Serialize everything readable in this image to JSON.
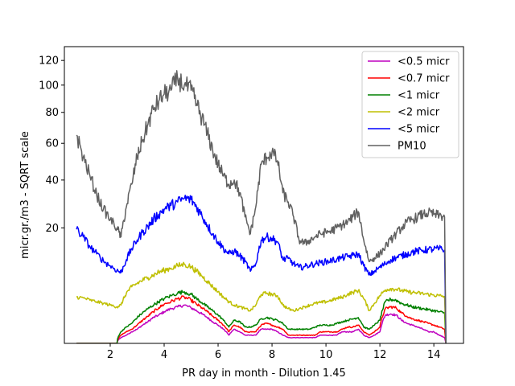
{
  "chart_data": {
    "type": "line",
    "xlabel": "PR day in month - Dilution 1.45",
    "ylabel": "micr.gr./m3 - SQRT scale",
    "y_scale": "sqrt",
    "xlim": [
      0.3,
      15.1
    ],
    "ylim": [
      0,
      132
    ],
    "x_ticks": [
      2,
      4,
      6,
      8,
      10,
      12,
      14
    ],
    "y_ticks": [
      20,
      40,
      60,
      80,
      100,
      120
    ],
    "legend_position": "upper-right",
    "grid": false,
    "x": [
      0.75,
      1.0,
      1.25,
      1.5,
      1.75,
      2.0,
      2.25,
      2.4,
      2.6,
      2.8,
      3.0,
      3.2,
      3.4,
      3.6,
      3.8,
      4.0,
      4.25,
      4.5,
      4.75,
      5.0,
      5.2,
      5.4,
      5.6,
      5.8,
      6.0,
      6.2,
      6.4,
      6.6,
      6.8,
      7.0,
      7.2,
      7.4,
      7.6,
      7.8,
      8.0,
      8.2,
      8.4,
      8.6,
      8.8,
      9.0,
      9.2,
      9.4,
      9.6,
      9.8,
      10.0,
      10.2,
      10.4,
      10.6,
      10.8,
      11.0,
      11.2,
      11.4,
      11.6,
      11.8,
      12.0,
      12.2,
      12.4,
      12.6,
      12.8,
      13.0,
      13.2,
      13.4,
      13.6,
      13.8,
      14.0,
      14.2,
      14.4,
      14.45
    ],
    "series": [
      {
        "name": "<0.5 micr",
        "color": "#bf00bf",
        "values": [
          0.0,
          0.0,
          0.0,
          0.0,
          0.0,
          0.0,
          0.0,
          0.05,
          0.1,
          0.2,
          0.3,
          0.5,
          0.7,
          1.0,
          1.2,
          1.5,
          1.8,
          2.0,
          2.2,
          1.9,
          1.6,
          1.3,
          1.0,
          0.7,
          0.5,
          0.3,
          0.1,
          0.3,
          0.2,
          0.1,
          0.1,
          0.1,
          0.3,
          0.3,
          0.3,
          0.2,
          0.1,
          0.05,
          0.05,
          0.05,
          0.05,
          0.05,
          0.05,
          0.1,
          0.1,
          0.1,
          0.1,
          0.2,
          0.2,
          0.2,
          0.3,
          0.1,
          0.05,
          0.1,
          0.2,
          1.2,
          1.3,
          1.2,
          0.8,
          0.6,
          0.5,
          0.4,
          0.3,
          0.2,
          0.2,
          0.1,
          0.05,
          0.0
        ]
      },
      {
        "name": "<0.7 micr",
        "color": "#ff0000",
        "values": [
          0.0,
          0.0,
          0.0,
          0.0,
          0.0,
          0.0,
          0.0,
          0.1,
          0.2,
          0.3,
          0.5,
          0.8,
          1.1,
          1.5,
          1.9,
          2.3,
          2.6,
          3.0,
          3.2,
          2.8,
          2.3,
          1.9,
          1.5,
          1.1,
          0.8,
          0.5,
          0.2,
          0.5,
          0.4,
          0.2,
          0.2,
          0.2,
          0.5,
          0.6,
          0.5,
          0.4,
          0.3,
          0.1,
          0.1,
          0.1,
          0.1,
          0.1,
          0.1,
          0.2,
          0.2,
          0.2,
          0.2,
          0.3,
          0.4,
          0.4,
          0.5,
          0.2,
          0.1,
          0.2,
          0.4,
          1.8,
          2.0,
          1.9,
          1.4,
          1.1,
          0.9,
          0.8,
          0.7,
          0.6,
          0.5,
          0.4,
          0.3,
          0.0
        ]
      },
      {
        "name": "<1 micr",
        "color": "#008000",
        "values": [
          0.0,
          0.0,
          0.0,
          0.0,
          0.0,
          0.0,
          0.0,
          0.2,
          0.4,
          0.6,
          1.0,
          1.4,
          1.8,
          2.2,
          2.6,
          3.0,
          3.4,
          3.8,
          4.0,
          3.6,
          3.0,
          2.5,
          2.0,
          1.6,
          1.2,
          0.8,
          0.4,
          0.8,
          0.7,
          0.4,
          0.4,
          0.5,
          0.9,
          1.0,
          0.9,
          0.8,
          0.6,
          0.3,
          0.3,
          0.3,
          0.3,
          0.3,
          0.4,
          0.5,
          0.5,
          0.5,
          0.6,
          0.7,
          0.8,
          0.9,
          1.0,
          0.4,
          0.3,
          0.5,
          0.8,
          2.6,
          2.9,
          2.8,
          2.4,
          2.2,
          2.0,
          1.9,
          1.8,
          1.7,
          1.6,
          1.5,
          1.4,
          0.0
        ]
      },
      {
        "name": "<2 micr",
        "color": "#bfbf00",
        "values": [
          3.2,
          3.1,
          2.8,
          2.6,
          2.4,
          2.2,
          2.0,
          2.2,
          3.8,
          4.8,
          5.4,
          6.0,
          6.5,
          7.0,
          7.6,
          8.0,
          8.5,
          9.0,
          9.4,
          8.8,
          7.8,
          6.8,
          5.8,
          4.8,
          4.0,
          3.2,
          2.6,
          2.2,
          2.0,
          1.8,
          1.6,
          2.2,
          3.6,
          3.8,
          3.6,
          3.4,
          2.2,
          1.8,
          1.6,
          1.8,
          2.0,
          2.2,
          2.4,
          2.5,
          2.6,
          2.8,
          3.0,
          3.2,
          3.6,
          3.9,
          4.2,
          3.0,
          1.6,
          2.4,
          3.4,
          4.3,
          4.5,
          4.4,
          4.2,
          4.0,
          3.9,
          3.8,
          3.7,
          3.6,
          3.5,
          3.4,
          3.3,
          0.0
        ]
      },
      {
        "name": "<5 micr",
        "color": "#0000ff",
        "values": [
          19.5,
          17.0,
          14.0,
          12.0,
          10.2,
          9.0,
          8.0,
          7.5,
          10.5,
          13.5,
          16.0,
          18.5,
          20.5,
          23.0,
          25.0,
          27.0,
          28.5,
          30.0,
          31.5,
          31.0,
          28.0,
          24.5,
          21.0,
          18.0,
          15.5,
          13.5,
          12.0,
          12.8,
          11.5,
          10.0,
          7.8,
          9.5,
          16.0,
          17.0,
          16.5,
          15.5,
          10.5,
          10.8,
          9.5,
          8.7,
          8.8,
          9.2,
          9.5,
          9.8,
          10.0,
          10.3,
          10.6,
          11.0,
          11.3,
          11.6,
          12.0,
          9.0,
          7.0,
          7.8,
          8.7,
          9.5,
          10.5,
          11.0,
          11.5,
          12.0,
          12.5,
          12.8,
          13.0,
          13.2,
          13.3,
          13.4,
          13.0,
          0.0
        ]
      },
      {
        "name": "PM10",
        "color": "#606060",
        "values": [
          65.0,
          52.0,
          42.0,
          33.0,
          27.0,
          23.0,
          20.0,
          17.0,
          28.0,
          38.0,
          52.0,
          62.0,
          72.0,
          82.0,
          88.0,
          93.0,
          96.0,
          105.0,
          100.0,
          96.0,
          86.0,
          76.0,
          66.0,
          56.0,
          48.0,
          42.0,
          38.0,
          40.0,
          34.0,
          24.0,
          18.0,
          28.0,
          48.0,
          52.0,
          55.0,
          50.0,
          34.0,
          30.0,
          24.0,
          16.0,
          15.0,
          16.0,
          17.0,
          18.0,
          18.5,
          19.0,
          20.0,
          21.0,
          22.0,
          24.0,
          26.0,
          16.0,
          10.0,
          11.0,
          12.0,
          14.0,
          16.0,
          18.0,
          20.0,
          22.0,
          23.0,
          24.0,
          25.0,
          25.5,
          25.0,
          24.5,
          24.0,
          0.0
        ]
      }
    ]
  }
}
